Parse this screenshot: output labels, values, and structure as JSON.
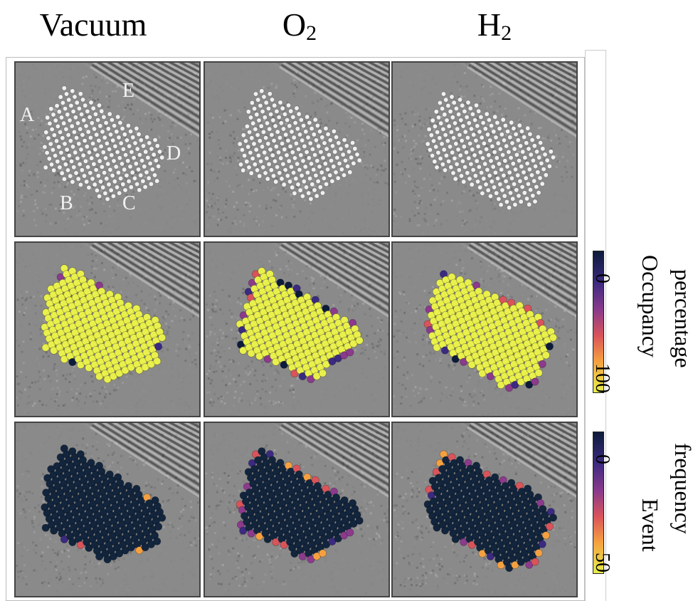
{
  "columns": [
    {
      "title": "Vacuum",
      "subscript": ""
    },
    {
      "title": "O",
      "subscript": "2"
    },
    {
      "title": "H",
      "subscript": "2"
    }
  ],
  "facet_labels": [
    "A",
    "B",
    "C",
    "D",
    "E"
  ],
  "colorbars": [
    {
      "min_label": "0",
      "max_label": "100",
      "label_line1": "Occupancy",
      "label_line2": "percentage"
    },
    {
      "min_label": "0",
      "max_label": "50",
      "label_line1": "Event",
      "label_line2": "frequency"
    }
  ],
  "colors": {
    "colormap": [
      "#0d1b3a",
      "#3b2a80",
      "#8b3a8c",
      "#d9545a",
      "#f5a040",
      "#e6ee4a"
    ],
    "bright_yellow": "#e9f04c",
    "dark_navy": "#12253d",
    "microscopy_gray": "#8a8a8a"
  }
}
